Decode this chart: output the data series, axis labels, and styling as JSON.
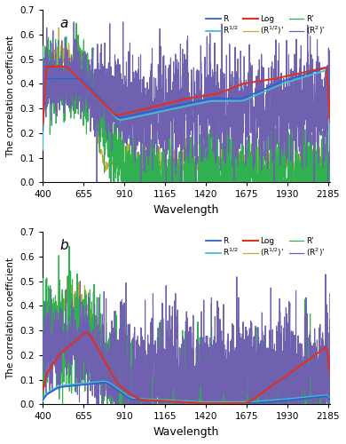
{
  "xlabel": "Wavelength",
  "ylabel": "The correlation coefficient",
  "xlim": [
    400,
    2200
  ],
  "ylim": [
    0,
    0.7
  ],
  "xticks": [
    400,
    655,
    910,
    1165,
    1420,
    1675,
    1930,
    2185
  ],
  "yticks": [
    0,
    0.1,
    0.2,
    0.3,
    0.4,
    0.5,
    0.6,
    0.7
  ],
  "legend_labels": [
    "R",
    "R$^{1/2}$",
    "Log",
    "(R$^{1/2}$)'",
    "R'",
    "(R$^{2}$)'"
  ],
  "line_colors": [
    "#3060cc",
    "#40c0d0",
    "#e03020",
    "#c8a830",
    "#30b050",
    "#7060b0"
  ],
  "line_widths": [
    1.3,
    1.3,
    1.5,
    0.8,
    0.8,
    0.8
  ],
  "background_color": "#ffffff",
  "figsize": [
    3.9,
    5.0
  ],
  "dpi": 100
}
